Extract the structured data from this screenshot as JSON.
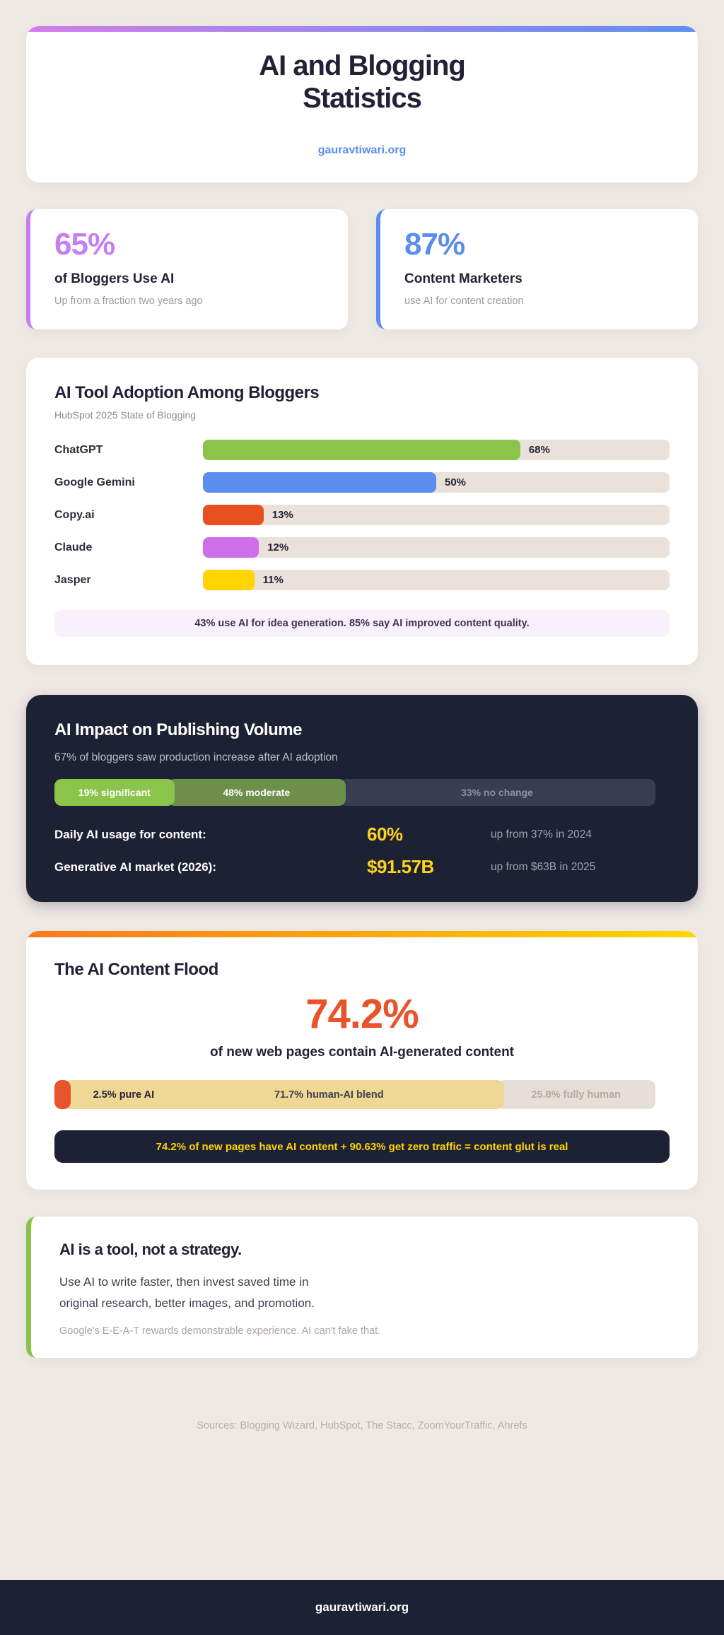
{
  "page": {
    "background": "#efe9e4"
  },
  "header": {
    "title": "AI and Blogging Statistics",
    "link": "gauravtiwari.org",
    "gradient": {
      "from": "#d47de9",
      "to": "#5f8fef"
    }
  },
  "stat_cards": [
    {
      "value": "65%",
      "label": "of Bloggers Use AI",
      "note": "Up from a fraction two years ago",
      "accent": "#c77ef0"
    },
    {
      "value": "87%",
      "label": "Content Marketers",
      "note": "use AI for content creation",
      "accent": "#5b8def"
    }
  ],
  "adoption": {
    "title": "AI Tool Adoption Among Bloggers",
    "subtitle": "HubSpot 2025 State of Blogging",
    "note": "43% use AI for idea generation. 85% say AI improved content quality."
  },
  "impact": {
    "title": "AI Impact on Publishing Volume",
    "subtitle": "67% of bloggers saw production increase after AI adoption",
    "rows": [
      {
        "label": "Daily AI usage for content:",
        "value": "60%",
        "note": "up from 37% in 2024"
      },
      {
        "label": "Generative AI market (2026):",
        "value": "$91.57B",
        "note": "up from $63B in 2025"
      }
    ],
    "value_color": "#ffd21e"
  },
  "flood": {
    "title": "The AI Content Flood",
    "big_value": "74.2%",
    "big_sub": "of new web pages contain AI-generated content",
    "banner": "74.2% of new pages have AI content + 90.63% get zero traffic = content glut is real",
    "gradient": {
      "from": "#f9791c",
      "to": "#ffd600"
    },
    "big_value_color": "#e8532a",
    "banner_text_color": "#ffd400"
  },
  "takeaway": {
    "title": "AI is a tool, not a strategy.",
    "body_lines": [
      "Use AI to write faster, then invest saved time in",
      "original research, better images, and promotion."
    ],
    "note": "Google's E-E-A-T rewards demonstrable experience. AI can't fake that.",
    "accent": "#8bc34a"
  },
  "sources": "Sources: Blogging Wizard, HubSpot, The Stacc, ZoomYourTraffic, Ahrefs",
  "footer": {
    "text": "gauravtiwari.org"
  },
  "chart_data": [
    {
      "type": "bar",
      "title": "AI Tool Adoption Among Bloggers",
      "subtitle": "HubSpot 2025 State of Blogging",
      "categories": [
        "ChatGPT",
        "Google Gemini",
        "Copy.ai",
        "Claude",
        "Jasper"
      ],
      "values": [
        68,
        50,
        13,
        12,
        11
      ],
      "value_labels": [
        "68%",
        "50%",
        "13%",
        "12%",
        "11%"
      ],
      "colors": [
        "#8cc34b",
        "#5b8def",
        "#e8501f",
        "#ce6ee8",
        "#ffd400"
      ],
      "xlabel": "",
      "ylabel": "",
      "xlim": [
        0,
        100
      ],
      "grid": false,
      "legend": "none",
      "orientation": "horizontal",
      "track_color": "#e9e1da"
    },
    {
      "type": "bar",
      "subtype": "stacked-single",
      "title": "AI Impact on Publishing Volume",
      "labels": [
        "19% significant",
        "48% moderate",
        "33% no change"
      ],
      "values": [
        19,
        48,
        33
      ],
      "visual_widths": [
        19.5,
        29,
        51.5
      ],
      "colors": [
        "#8cc34b",
        "#6d8f4a",
        "#393d50"
      ]
    },
    {
      "type": "bar",
      "subtype": "stacked-single",
      "title": "The AI Content Flood",
      "labels": [
        "2.5% pure AI",
        "71.7% human-AI blend",
        "25.8% fully human"
      ],
      "values": [
        2.5,
        71.7,
        25.8
      ],
      "visual_widths": [
        2.6,
        71.6,
        25.8
      ],
      "colors": [
        "#e8532a",
        "#eed893",
        "#e6dfd8"
      ]
    }
  ]
}
